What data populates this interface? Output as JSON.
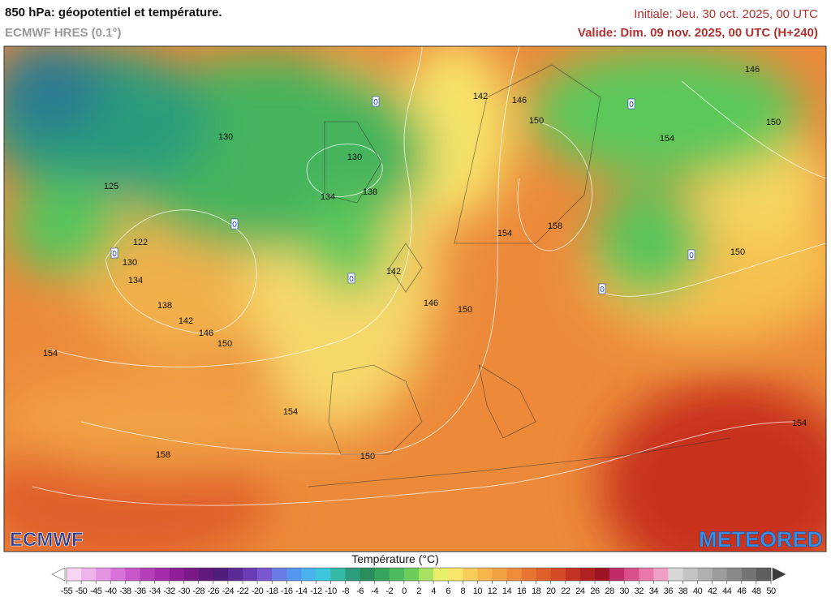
{
  "header": {
    "title": "850 hPa: géopotentiel et température.",
    "subtitle": "ECMWF HRES (0.1°)",
    "initial": "Initiale: Jeu. 30 oct. 2025, 00 UTC",
    "valid": "Valide: Dim. 09 nov. 2025, 00 UTC (H+240)"
  },
  "map": {
    "contour_labels": [
      146,
      142,
      146,
      150,
      154,
      150,
      130,
      130,
      134,
      138,
      125,
      122,
      130,
      134,
      138,
      142,
      146,
      150,
      154,
      142,
      146,
      150,
      154,
      158,
      150,
      154,
      150,
      158,
      154
    ],
    "isotherm_labels": [
      0,
      0,
      0,
      0,
      0,
      0,
      0
    ],
    "logo_left": "ECMWF",
    "logo_right": "METEORED"
  },
  "legend": {
    "title": "Température (°C)",
    "ticks": [
      -55,
      -50,
      -45,
      -40,
      -38,
      -36,
      -34,
      -32,
      -30,
      -28,
      -26,
      -24,
      -22,
      -20,
      -18,
      -16,
      -14,
      -12,
      -10,
      -8,
      -6,
      -4,
      -2,
      0,
      2,
      4,
      6,
      8,
      10,
      12,
      14,
      16,
      18,
      20,
      22,
      24,
      26,
      28,
      30,
      32,
      34,
      36,
      38,
      40,
      42,
      44,
      46,
      48,
      50
    ],
    "colors": [
      "#f6d6f2",
      "#efb4ea",
      "#e493e2",
      "#d872d8",
      "#c957c9",
      "#b63eb8",
      "#a22ca8",
      "#8e1f98",
      "#7a188a",
      "#62187e",
      "#4e1c7a",
      "#5a2a96",
      "#6a3cb4",
      "#7a56d0",
      "#6a7ae6",
      "#5696f0",
      "#48b2ee",
      "#3cc6dc",
      "#34b8a4",
      "#2c9c7c",
      "#2a8c5c",
      "#36a45c",
      "#4cba5c",
      "#6ccc5a",
      "#a8e060",
      "#e8ef6a",
      "#f8e46a",
      "#f8cc5a",
      "#f6b64c",
      "#f2a044",
      "#ee8c3c",
      "#e87434",
      "#e0602c",
      "#d44a26",
      "#c43222",
      "#b0201e",
      "#9e1424",
      "#c02a66",
      "#d8508a",
      "#e878aa",
      "#f0a0c4",
      "#d8d8d8",
      "#c4c4c4",
      "#b0b0b0",
      "#9c9c9c",
      "#888888",
      "#747474",
      "#5e5e5e"
    ]
  }
}
